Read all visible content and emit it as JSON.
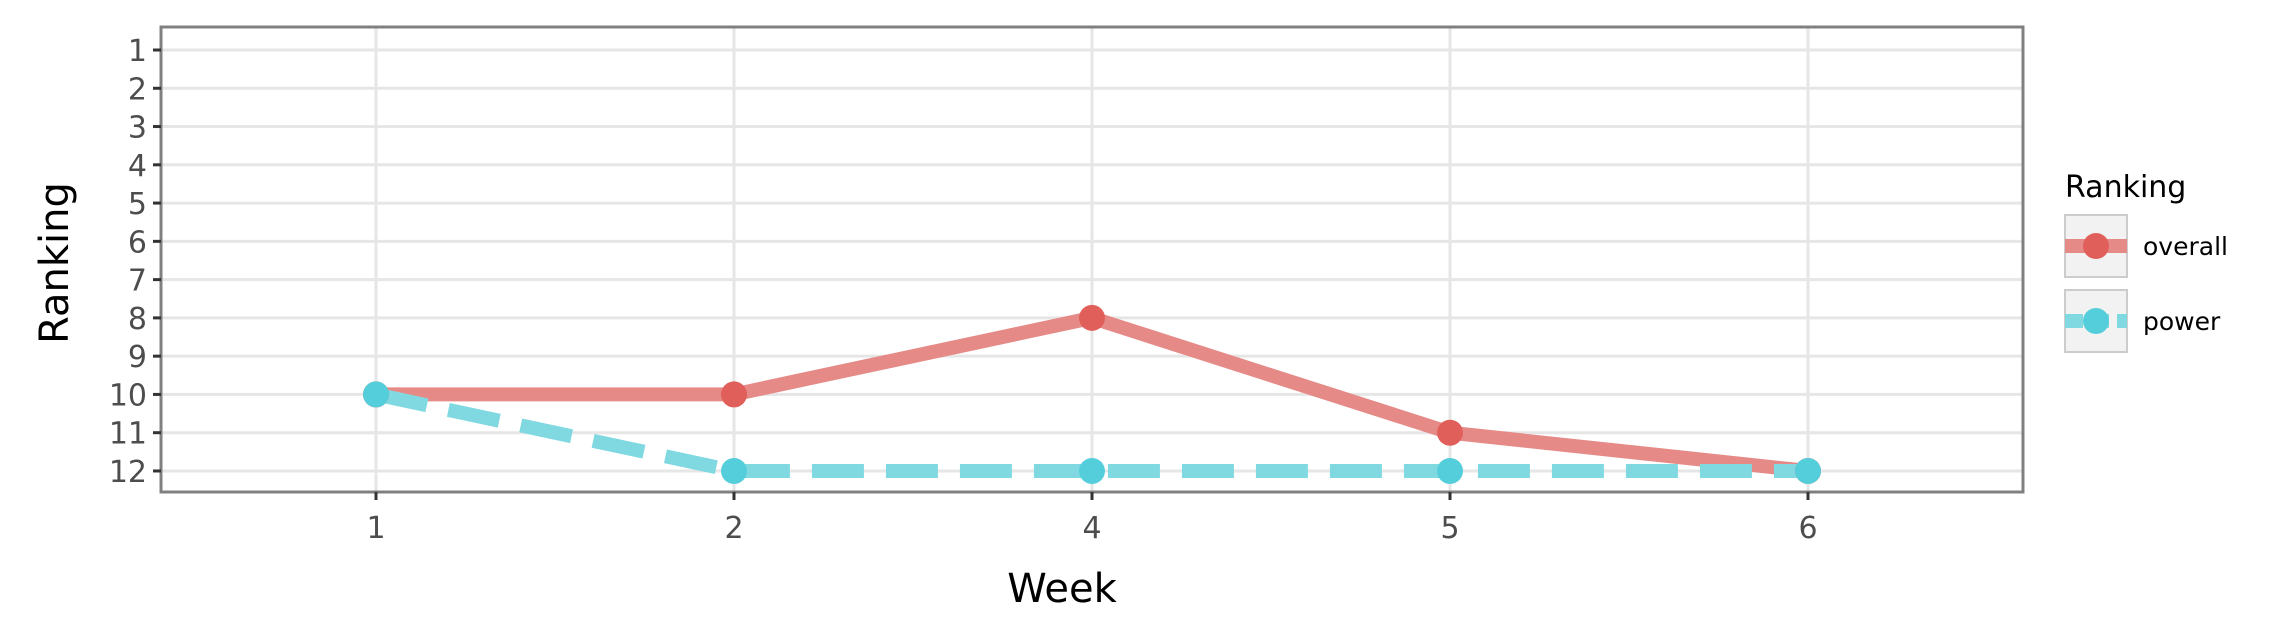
{
  "chart_data": {
    "type": "line",
    "title": "",
    "xlabel": "Week",
    "ylabel": "Ranking",
    "categories": [
      "1",
      "2",
      "4",
      "5",
      "6"
    ],
    "y_ticks": [
      "1",
      "2",
      "3",
      "4",
      "5",
      "6",
      "7",
      "8",
      "9",
      "10",
      "11",
      "12"
    ],
    "ylim": [
      1,
      12
    ],
    "y_reversed": true,
    "grid": true,
    "legend_title": "Ranking",
    "legend_position": "right",
    "series": [
      {
        "name": "overall",
        "values": [
          10,
          10,
          8,
          11,
          12
        ],
        "color": "#E15F5A",
        "line_color": "#E58A87",
        "dashed": false
      },
      {
        "name": "power",
        "values": [
          10,
          12,
          12,
          12,
          12
        ],
        "color": "#55CEDB",
        "line_color": "#80D9E1",
        "dashed": true
      }
    ]
  }
}
